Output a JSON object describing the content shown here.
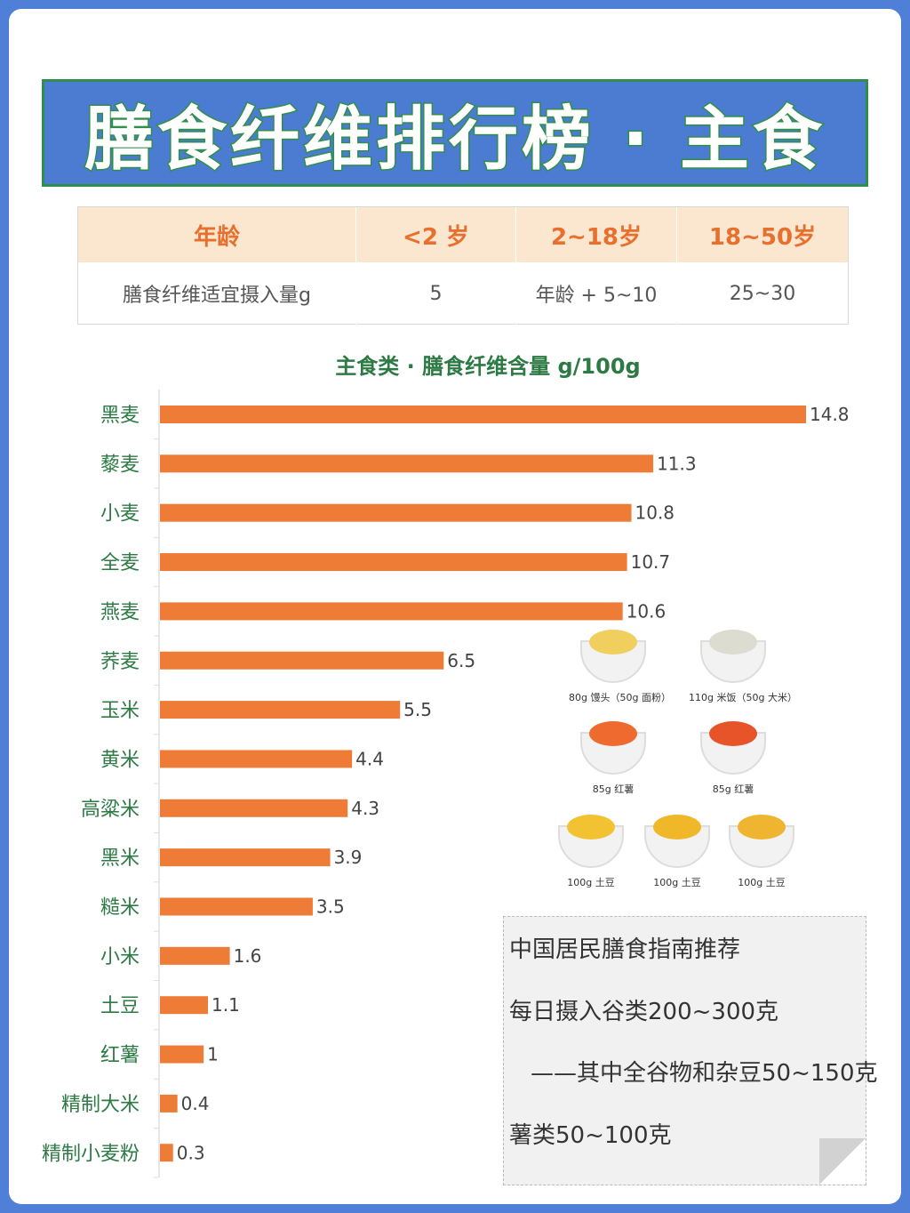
{
  "title": "膳食纤维排行榜 · 主食",
  "intake_table": {
    "headers": [
      "年龄",
      "<2 岁",
      "2~18岁",
      "18~50岁"
    ],
    "row": [
      "膳食纤维适宜摄入量g",
      "5",
      "年龄 + 5~10",
      "25~30"
    ]
  },
  "chart_data": {
    "type": "bar",
    "orientation": "horizontal",
    "title": "主食类 · 膳食纤维含量 g/100g",
    "categories": [
      "黑麦",
      "藜麦",
      "小麦",
      "全麦",
      "燕麦",
      "荞麦",
      "玉米",
      "黄米",
      "高粱米",
      "黑米",
      "糙米",
      "小米",
      "土豆",
      "红薯",
      "精制大米",
      "精制小麦粉"
    ],
    "values": [
      14.8,
      11.3,
      10.8,
      10.7,
      10.6,
      6.5,
      5.5,
      4.4,
      4.3,
      3.9,
      3.5,
      1.6,
      1.1,
      1,
      0.4,
      0.3
    ],
    "value_labels": [
      "14.8",
      "11.3",
      "10.8",
      "10.7",
      "10.6",
      "6.5",
      "5.5",
      "4.4",
      "4.3",
      "3.9",
      "3.5",
      "1.6",
      "1.1",
      "1",
      "0.4",
      "0.3"
    ],
    "xlim": [
      0,
      14.8
    ],
    "bar_color": "#ee7b36",
    "grid": false
  },
  "food_images": [
    {
      "icon": "steamed-bun-icon",
      "caption": "80g 馒头（50g 面粉）",
      "color": "#f1cf5e"
    },
    {
      "icon": "rice-bowl-icon",
      "caption": "110g 米饭（50g 大米）",
      "color": "#dcdcd0"
    },
    {
      "icon": "sweet-potato-icon",
      "caption": "85g 红薯",
      "color": "#ef6a2e"
    },
    {
      "icon": "sweet-potato-icon",
      "caption": "85g 红薯",
      "color": "#e8542a"
    },
    {
      "icon": "potato-icon",
      "caption": "100g 土豆",
      "color": "#f3c232"
    },
    {
      "icon": "potato-icon",
      "caption": "100g 土豆",
      "color": "#f0b828"
    },
    {
      "icon": "potato-icon",
      "caption": "100g 土豆",
      "color": "#efb530"
    }
  ],
  "guideline_note": {
    "heading": "中国居民膳食指南推荐",
    "line1": "每日摄入谷类200~300克",
    "line2": "——其中全谷物和杂豆50~150克",
    "line3": "薯类50~100克"
  },
  "colors": {
    "background": "#4f7fd6",
    "title_bg": "#4c7bd2",
    "title_border": "#2f8f4a",
    "label_green": "#2d7a45",
    "table_header_bg": "#fbe6cf",
    "table_header_text": "#e8702e"
  }
}
